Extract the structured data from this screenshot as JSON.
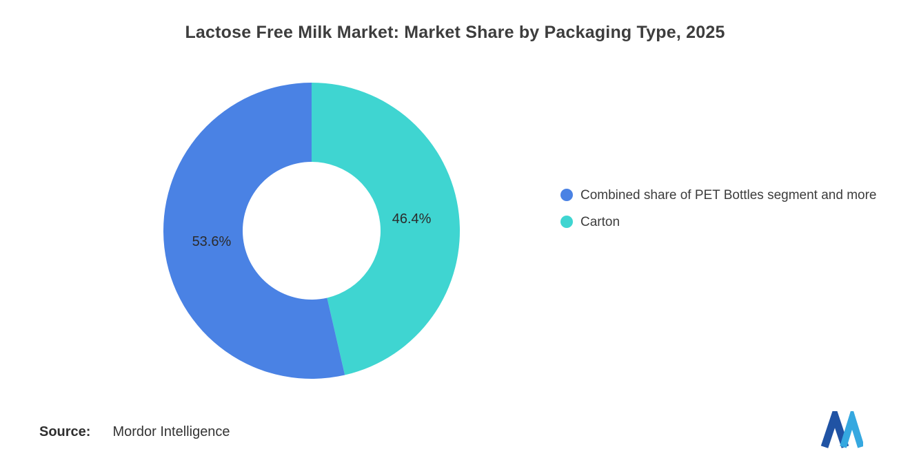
{
  "chart_data": {
    "type": "pie",
    "subtype": "donut",
    "title": "Lactose Free Milk Market: Market Share by Packaging Type, 2025",
    "unit": "%",
    "segments": [
      {
        "label": "Combined share of PET Bottles segment and more",
        "value": 53.6,
        "display_value": "53.6%",
        "color": "#4A82E4"
      },
      {
        "label": "Carton",
        "value": 46.4,
        "display_value": "46.4%",
        "color": "#3FD5D1"
      }
    ],
    "clockwise_from_top_order": [
      1,
      0
    ],
    "inner_radius_ratio": 0.465,
    "legend_position": "right",
    "data_labels": "inside",
    "total": 100
  },
  "source": {
    "label": "Source:",
    "value": "Mordor Intelligence"
  },
  "logo": {
    "name": "Mordor Intelligence",
    "colors": {
      "dark": "#2053A4",
      "light": "#35A8E0"
    }
  }
}
